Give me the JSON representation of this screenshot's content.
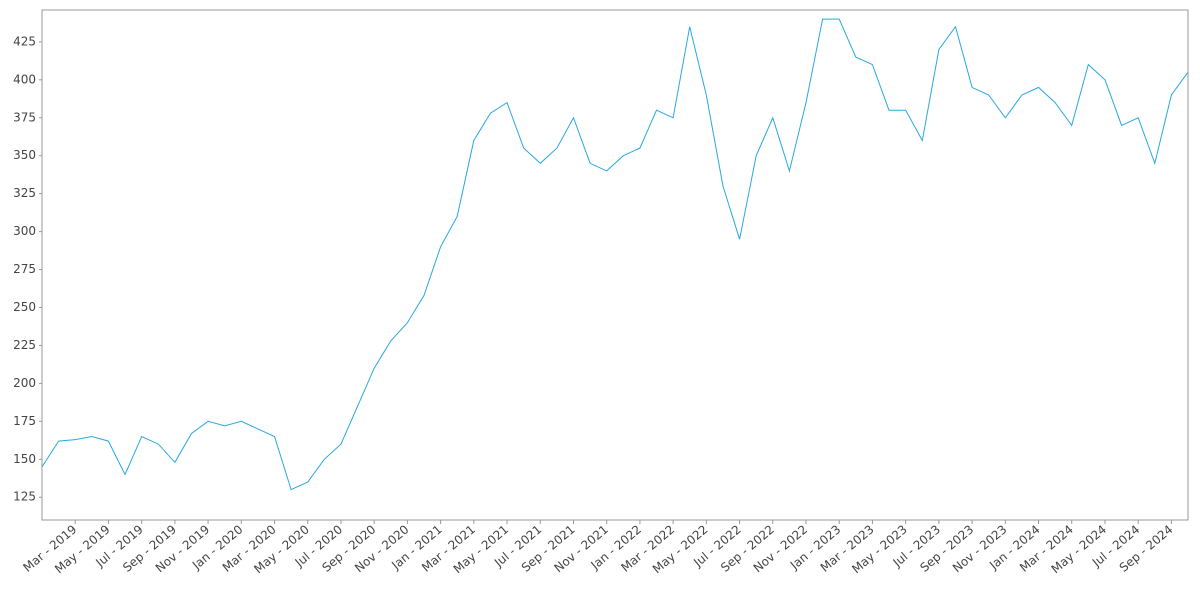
{
  "chart_data": {
    "type": "line",
    "x": [
      "2019-01",
      "2019-02",
      "2019-03",
      "2019-04",
      "2019-05",
      "2019-06",
      "2019-07",
      "2019-08",
      "2019-09",
      "2019-10",
      "2019-11",
      "2019-12",
      "2020-01",
      "2020-02",
      "2020-03",
      "2020-04",
      "2020-05",
      "2020-06",
      "2020-07",
      "2020-08",
      "2020-09",
      "2020-10",
      "2020-11",
      "2020-12",
      "2021-01",
      "2021-02",
      "2021-03",
      "2021-04",
      "2021-05",
      "2021-06",
      "2021-07",
      "2021-08",
      "2021-09",
      "2021-10",
      "2021-11",
      "2021-12",
      "2022-01",
      "2022-02",
      "2022-03",
      "2022-04",
      "2022-05",
      "2022-06",
      "2022-07",
      "2022-08",
      "2022-09",
      "2022-10",
      "2022-11",
      "2022-12",
      "2023-01",
      "2023-02",
      "2023-03",
      "2023-04",
      "2023-05",
      "2023-06",
      "2023-07",
      "2023-08",
      "2023-09",
      "2023-10",
      "2023-11",
      "2023-12",
      "2024-01",
      "2024-02",
      "2024-03",
      "2024-04",
      "2024-05",
      "2024-06",
      "2024-07",
      "2024-08",
      "2024-09",
      "2024-10"
    ],
    "series": [
      {
        "color": "#29a8e0",
        "values": [
          145,
          162,
          163,
          165,
          162,
          140,
          165,
          160,
          148,
          167,
          175,
          172,
          175,
          170,
          165,
          130,
          135,
          150,
          160,
          185,
          210,
          228,
          240,
          258,
          290,
          310,
          360,
          378,
          385,
          355,
          345,
          355,
          375,
          345,
          340,
          350,
          355,
          380,
          375,
          435,
          390,
          330,
          295,
          350,
          375,
          340,
          385,
          440,
          440,
          415,
          410,
          380,
          380,
          360,
          420,
          435,
          395,
          390,
          375,
          390,
          395,
          385,
          370,
          410,
          400,
          370,
          375,
          345,
          390,
          405
        ]
      }
    ],
    "xlim": [
      "2019-01",
      "2024-10"
    ],
    "xticks": [
      {
        "value": "2019-03",
        "label": "Mar - 2019"
      },
      {
        "value": "2019-05",
        "label": "May - 2019"
      },
      {
        "value": "2019-07",
        "label": "Jul - 2019"
      },
      {
        "value": "2019-09",
        "label": "Sep - 2019"
      },
      {
        "value": "2019-11",
        "label": "Nov - 2019"
      },
      {
        "value": "2020-01",
        "label": "Jan - 2020"
      },
      {
        "value": "2020-03",
        "label": "Mar - 2020"
      },
      {
        "value": "2020-05",
        "label": "May - 2020"
      },
      {
        "value": "2020-07",
        "label": "Jul - 2020"
      },
      {
        "value": "2020-09",
        "label": "Sep - 2020"
      },
      {
        "value": "2020-11",
        "label": "Nov - 2020"
      },
      {
        "value": "2021-01",
        "label": "Jan - 2021"
      },
      {
        "value": "2021-03",
        "label": "Mar - 2021"
      },
      {
        "value": "2021-05",
        "label": "May - 2021"
      },
      {
        "value": "2021-07",
        "label": "Jul - 2021"
      },
      {
        "value": "2021-09",
        "label": "Sep - 2021"
      },
      {
        "value": "2021-11",
        "label": "Nov - 2021"
      },
      {
        "value": "2022-01",
        "label": "Jan - 2022"
      },
      {
        "value": "2022-03",
        "label": "Mar - 2022"
      },
      {
        "value": "2022-05",
        "label": "May - 2022"
      },
      {
        "value": "2022-07",
        "label": "Jul - 2022"
      },
      {
        "value": "2022-09",
        "label": "Sep - 2022"
      },
      {
        "value": "2022-11",
        "label": "Nov - 2022"
      },
      {
        "value": "2023-01",
        "label": "Jan - 2023"
      },
      {
        "value": "2023-03",
        "label": "Mar - 2023"
      },
      {
        "value": "2023-05",
        "label": "May - 2023"
      },
      {
        "value": "2023-07",
        "label": "Jul - 2023"
      },
      {
        "value": "2023-09",
        "label": "Sep - 2023"
      },
      {
        "value": "2023-11",
        "label": "Nov - 2023"
      },
      {
        "value": "2024-01",
        "label": "Jan - 2024"
      },
      {
        "value": "2024-03",
        "label": "Mar - 2024"
      },
      {
        "value": "2024-05",
        "label": "May - 2024"
      },
      {
        "value": "2024-07",
        "label": "Jul - 2024"
      },
      {
        "value": "2024-09",
        "label": "Sep - 2024"
      }
    ],
    "ylim": [
      110,
      446
    ],
    "yticks": [
      125,
      150,
      175,
      200,
      225,
      250,
      275,
      300,
      325,
      350,
      375,
      400,
      425
    ],
    "grid": false
  }
}
